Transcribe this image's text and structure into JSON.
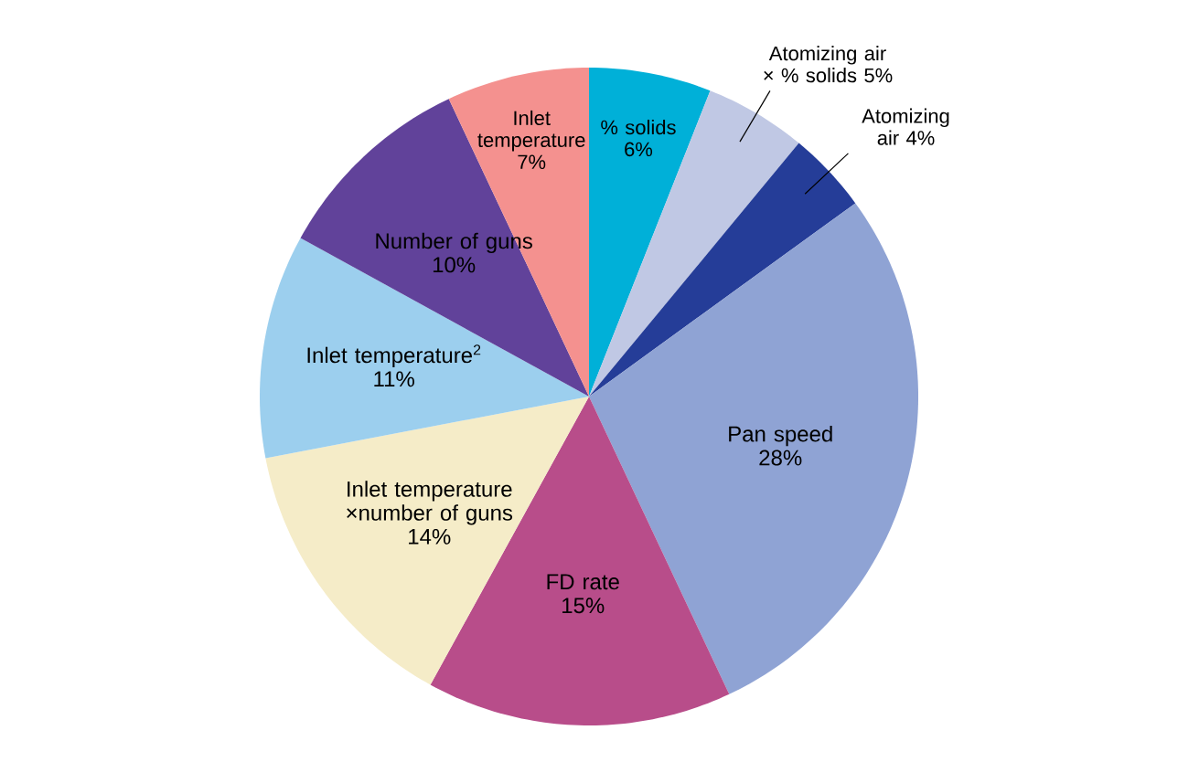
{
  "chart_data": {
    "type": "pie",
    "categories": [
      "% solids",
      "Atomizing air × % solids",
      "Atomizing air",
      "Pan speed",
      "FD rate",
      "Inlet temperature ×number of guns",
      "Inlet temperature$^{2}$",
      "Number of guns",
      "Inlet temperature"
    ],
    "values": [
      6,
      5,
      4,
      28,
      15,
      14,
      11,
      10,
      7
    ],
    "colors": [
      "#00b0d8",
      "#c0c8e4",
      "#253d98",
      "#8fa3d4",
      "#b84d8a",
      "#f5ecc8",
      "#9ccfee",
      "#61429a",
      "#f4918f"
    ],
    "value_labels": [
      "6%",
      "5%",
      "4%",
      "28%",
      "15%",
      "14%",
      "11%",
      "10%",
      "7%"
    ]
  }
}
